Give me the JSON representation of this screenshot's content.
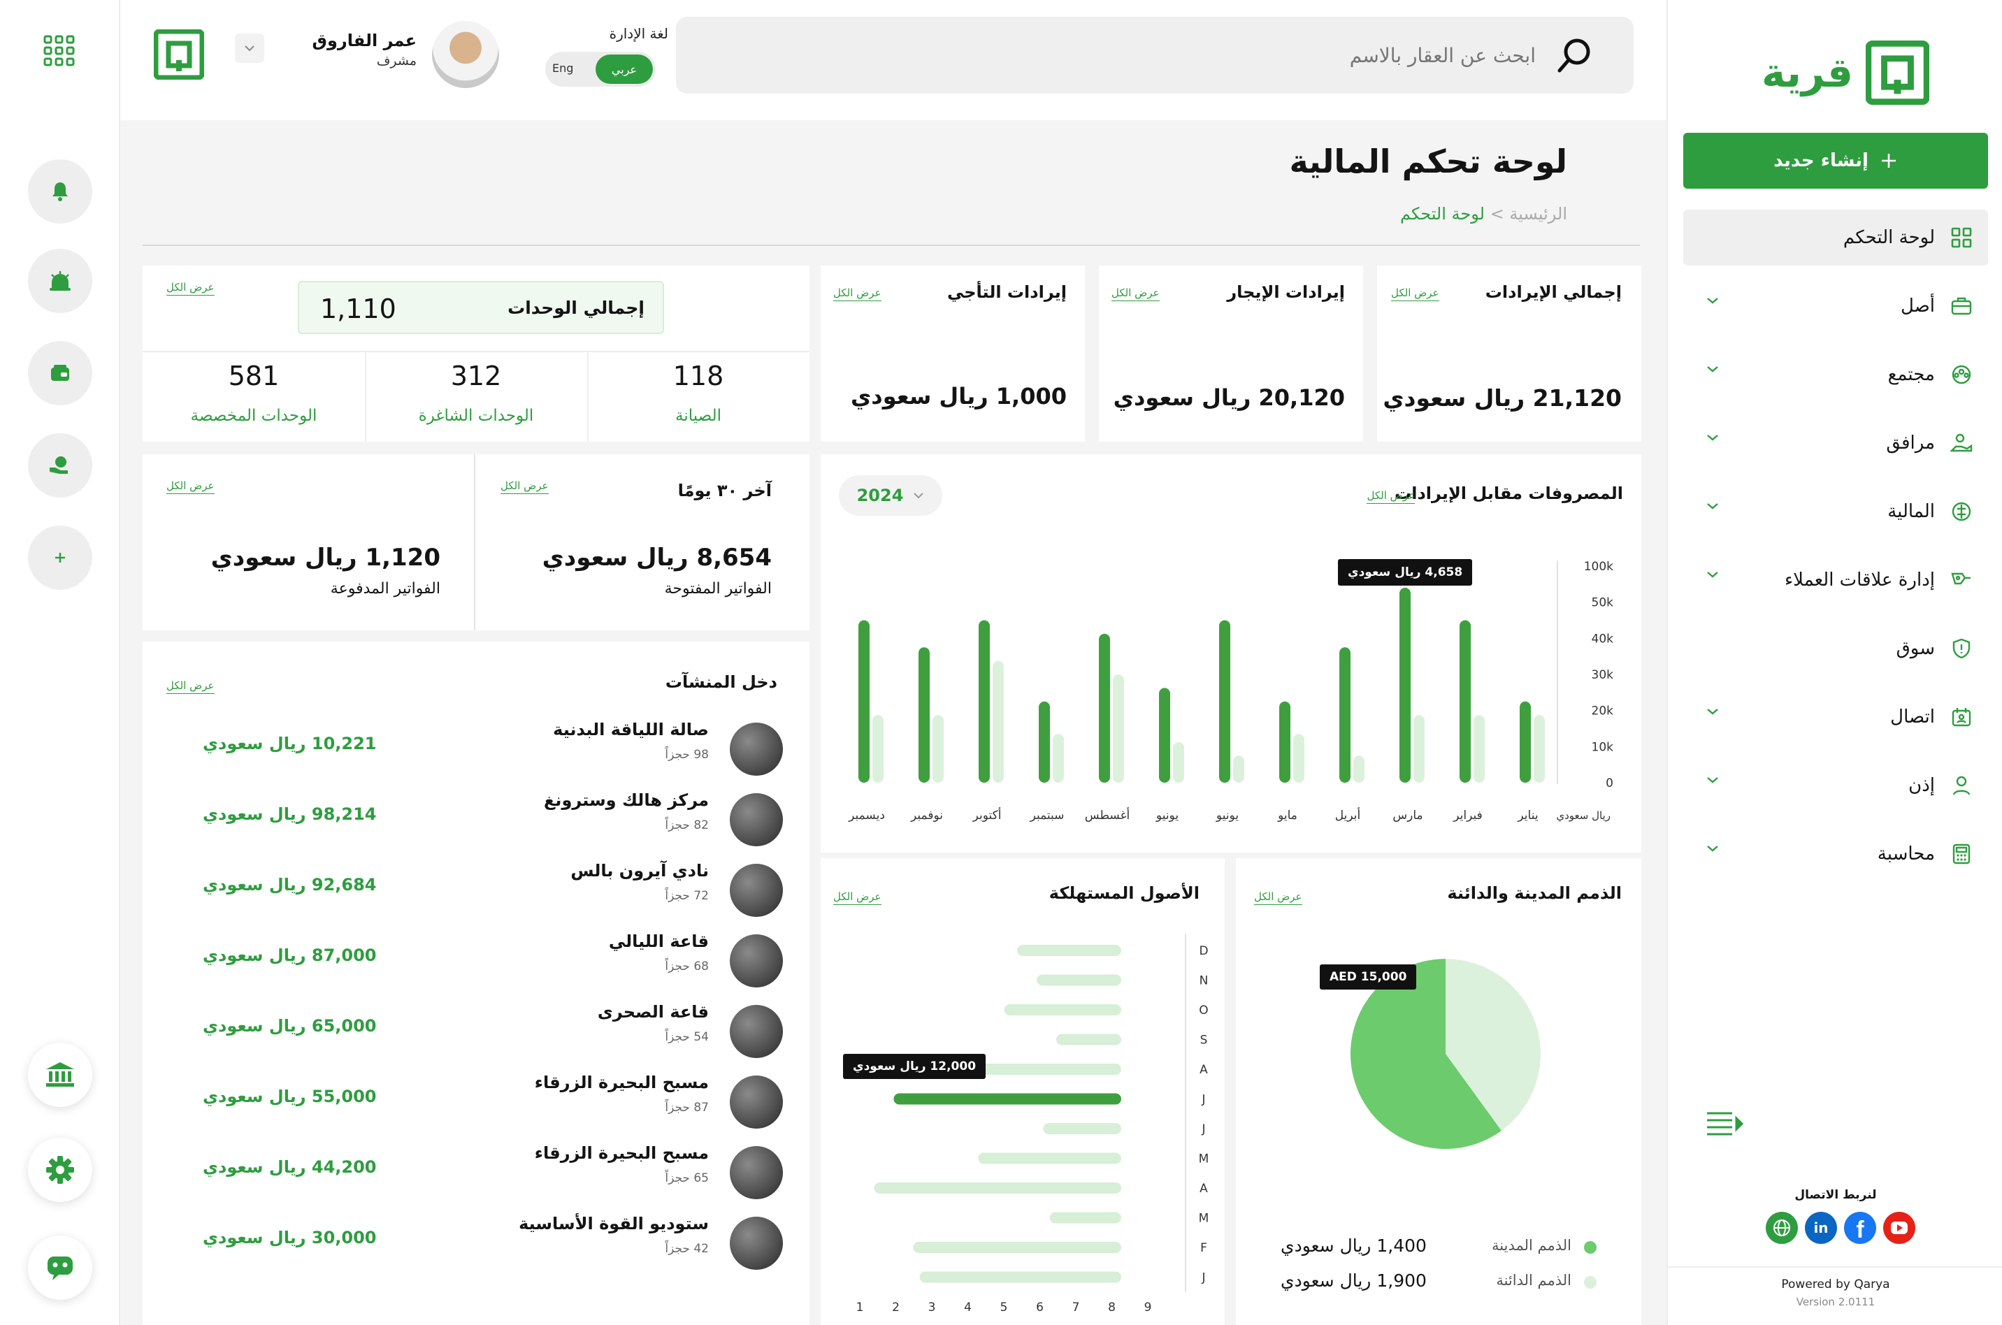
{
  "brand": {
    "name": "قرية",
    "color": "#2e9d3f",
    "light": "#d6efd6"
  },
  "header": {
    "search_placeholder": "ابحث عن العقار بالاسم",
    "lang_label": "لغة الإدارة",
    "lang_ar": "عربي",
    "lang_en": "Eng",
    "user_name": "عمر الفاروق",
    "user_role": "مشرف"
  },
  "sidebar": {
    "create_label": "إنشاء جديد",
    "items": [
      {
        "label": "لوحة التحكم",
        "icon": "grid-icon"
      },
      {
        "label": "أصل",
        "icon": "briefcase-icon"
      },
      {
        "label": "مجتمع",
        "icon": "community-icon"
      },
      {
        "label": "مرافق",
        "icon": "facilities-icon"
      },
      {
        "label": "المالية",
        "icon": "finance-icon"
      },
      {
        "label": "إدارة علاقات العملاء",
        "icon": "crm-icon"
      },
      {
        "label": "سوق",
        "icon": "shield-icon"
      },
      {
        "label": "اتصال",
        "icon": "contact-icon"
      },
      {
        "label": "إذن",
        "icon": "user-icon"
      },
      {
        "label": "محاسبة",
        "icon": "calculator-icon"
      }
    ],
    "connect_label": "لنربط الاتصال",
    "powered": "Powered by Qarya",
    "version": "Version 2.0111"
  },
  "page": {
    "title": "لوحة تحكم المالية",
    "crumb_home": "الرئيسية",
    "crumb_sep": " > ",
    "crumb_current": "لوحة التحكم"
  },
  "view_all": "عرض الكل",
  "units": {
    "total_label": "إجمالي الوحدات",
    "total": "1,110",
    "maint_value": "118",
    "maint_label": "الصيانة",
    "vacant_value": "312",
    "vacant_label": "الوحدات الشاغرة",
    "assigned_value": "581",
    "assigned_label": "الوحدات المخصصة"
  },
  "revenue": {
    "total_label": "إجمالي الإيرادات",
    "total_value": "21,120 ريال سعودي",
    "rent_label": "إيرادات الإيجار",
    "rent_value": "20,120 ريال سعودي",
    "lease_label": "إيرادات التأجي",
    "lease_value": "1,000 ريال سعودي"
  },
  "invoices": {
    "period": "آخر ٣٠ يومًا",
    "open_value": "8,654 ريال سعودي",
    "open_label": "الفواتير المفتوحة",
    "paid_value": "1,120 ريال سعودي",
    "paid_label": "الفواتير المدفوعة"
  },
  "facilities": {
    "title": "دخل المنشآت",
    "items": [
      {
        "name": "صالة اللياقة البدنية",
        "units": "98 حجزاً",
        "value": "10,221 ريال سعودي"
      },
      {
        "name": "مركز هالك وسترونغ",
        "units": "82 حجزاً",
        "value": "98,214 ريال سعودي"
      },
      {
        "name": "نادي آيرون بالس",
        "units": "72 حجزاً",
        "value": "92,684 ريال سعودي"
      },
      {
        "name": "قاعة الليالي",
        "units": "68 حجزاً",
        "value": "87,000 ريال سعودي"
      },
      {
        "name": "قاعة الصحرى",
        "units": "54 حجزاً",
        "value": "65,000 ريال سعودي"
      },
      {
        "name": "مسبح البحيرة الزرقاء",
        "units": "87 حجزاً",
        "value": "55,000 ريال سعودي"
      },
      {
        "name": "مسبح البحيرة الزرقاء",
        "units": "65 حجزاً",
        "value": "44,200 ريال سعودي"
      },
      {
        "name": "ستوديو القوة الأساسية",
        "units": "42 حجزاً",
        "value": "30,000 ريال سعودي"
      }
    ]
  },
  "expenses_chart": {
    "title": "المصروفات مقابل الإيرادات",
    "year": "2024",
    "axis_unit": "ريال سعودي",
    "tooltip": "4,658 ريال سعودي"
  },
  "assets_chart": {
    "title": "الأصول المستهلكة",
    "tooltip": "12,000 ريال سعودي"
  },
  "receivables_chart": {
    "title": "الذمم المدينة والدائنة",
    "tooltip": "AED 15,000",
    "legend": [
      {
        "label": "الذمم المدينة",
        "value": "1,400 ريال سعودي",
        "color": "#6ccb6c"
      },
      {
        "label": "الذمم الدائنة",
        "value": "1,900 ريال سعودي",
        "color": "#dcf1dc"
      }
    ]
  },
  "chart_data": [
    {
      "type": "bar",
      "title": "المصروفات مقابل الإيرادات",
      "categories": [
        "يناير",
        "فبراير",
        "مارس",
        "أبريل",
        "مايو",
        "يونيو",
        "يونيو",
        "أغسطس",
        "سبتمبر",
        "أكتوبر",
        "نوفمبر",
        "ديسمبر"
      ],
      "ylabel": "ريال سعودي",
      "y_ticks": [
        "0",
        "10k",
        "20k",
        "30k",
        "40k",
        "50k",
        "100k"
      ],
      "series": [
        {
          "color": "#3f9f3f",
          "values": [
            3,
            6,
            7.2,
            5,
            3,
            6,
            3.5,
            5.5,
            3,
            6,
            5,
            6
          ]
        },
        {
          "color": "#dcf1dc",
          "values": [
            2.5,
            2.5,
            2.5,
            1,
            1.8,
            1,
            1.5,
            4,
            1.8,
            4.5,
            2.5,
            2.5
          ]
        }
      ]
    },
    {
      "type": "bar",
      "title": "الأصول المستهلكة",
      "orientation": "horizontal",
      "categories": [
        "D",
        "N",
        "O",
        "S",
        "A",
        "J",
        "J",
        "M",
        "A",
        "M",
        "F",
        "J"
      ],
      "x_ticks": [
        "1",
        "2",
        "3",
        "4",
        "5",
        "6",
        "7",
        "8",
        "9"
      ],
      "series": [
        {
          "color": "#d6efd6",
          "values": [
            3.2,
            2.6,
            3.6,
            2,
            6,
            3.5,
            2.4,
            4.4,
            7.6,
            2.2,
            6.4,
            6.2
          ]
        },
        {
          "color": "#3f9f3f",
          "highlight_index": 5,
          "value": 7
        }
      ]
    },
    {
      "type": "pie",
      "title": "الذمم المدينة والدائنة",
      "categories": [
        "الذمم المدينة",
        "الذمم الدائنة"
      ],
      "values": [
        60,
        40
      ],
      "colors": [
        "#6ccb6c",
        "#dcf1dc"
      ]
    }
  ]
}
